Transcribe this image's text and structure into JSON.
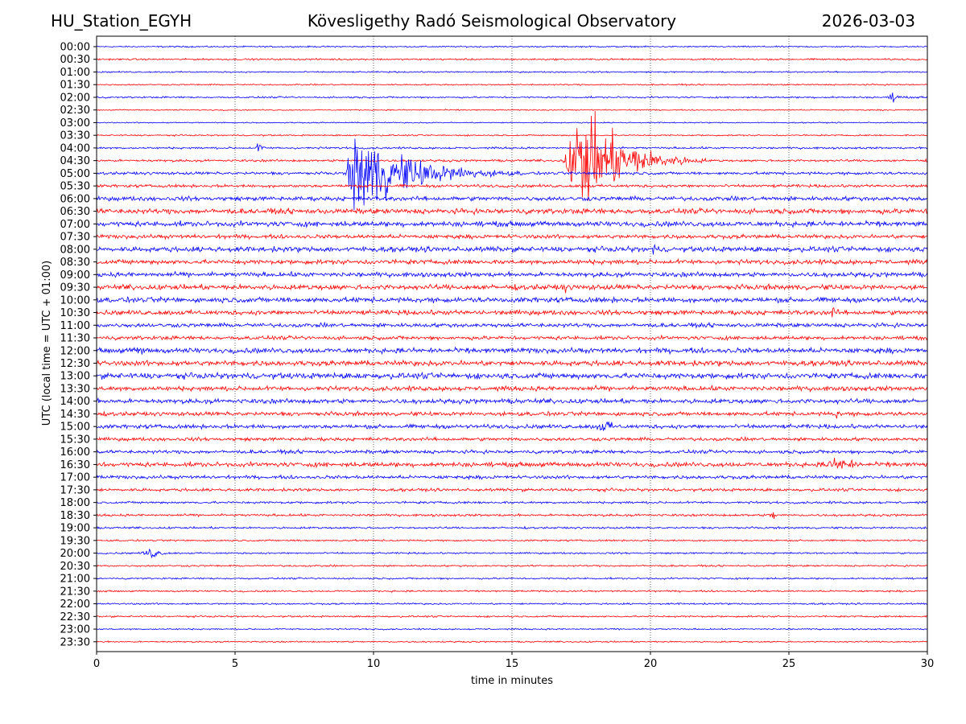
{
  "header": {
    "station": "HU_Station_EGYH",
    "observatory": "Kövesligethy Radó Seismological Observatory",
    "date": "2026-03-03"
  },
  "chart_data": {
    "type": "line",
    "title": "Kövesligethy Radó Seismological Observatory",
    "xlabel": "time in minutes",
    "ylabel": "UTC (local time = UTC + 01:00)",
    "xlim": [
      0,
      30
    ],
    "xticks": [
      0,
      5,
      10,
      15,
      20,
      25,
      30
    ],
    "grid": "vertical dotted lines at each x tick",
    "colors": {
      "even": "#0000ff",
      "odd": "#ff0000",
      "axis": "#000000"
    },
    "rows": [
      "00:00",
      "00:30",
      "01:00",
      "01:30",
      "02:00",
      "02:30",
      "03:00",
      "03:30",
      "04:00",
      "04:30",
      "05:00",
      "05:30",
      "06:00",
      "06:30",
      "07:00",
      "07:30",
      "08:00",
      "08:30",
      "09:00",
      "09:30",
      "10:00",
      "10:30",
      "11:00",
      "11:30",
      "12:00",
      "12:30",
      "13:00",
      "13:30",
      "14:00",
      "14:30",
      "15:00",
      "15:30",
      "16:00",
      "16:30",
      "17:00",
      "17:30",
      "18:00",
      "18:30",
      "19:00",
      "19:30",
      "20:00",
      "20:30",
      "21:00",
      "21:30",
      "22:00",
      "22:30",
      "23:00",
      "23:30"
    ],
    "noise_amplitude": [
      0.05,
      0.06,
      0.05,
      0.05,
      0.06,
      0.04,
      0.04,
      0.05,
      0.07,
      0.08,
      0.1,
      0.1,
      0.15,
      0.18,
      0.18,
      0.14,
      0.18,
      0.16,
      0.16,
      0.18,
      0.18,
      0.16,
      0.14,
      0.13,
      0.18,
      0.18,
      0.2,
      0.16,
      0.16,
      0.14,
      0.14,
      0.12,
      0.12,
      0.16,
      0.12,
      0.1,
      0.08,
      0.08,
      0.07,
      0.06,
      0.06,
      0.06,
      0.06,
      0.06,
      0.06,
      0.06,
      0.05,
      0.05
    ],
    "events": [
      {
        "row": "05:00",
        "onset_min": 9.0,
        "peak_min": 9.3,
        "end_min": 15.5,
        "peak_amplitude": 3.2
      },
      {
        "row": "04:30",
        "onset_min": 16.8,
        "peak_min": 17.6,
        "end_min": 22.0,
        "peak_amplitude": 3.8
      },
      {
        "row": "02:00",
        "onset_min": 28.5,
        "peak_min": 28.8,
        "end_min": 29.5,
        "peak_amplitude": 0.4
      },
      {
        "row": "16:30",
        "onset_min": 25.8,
        "peak_min": 27.0,
        "end_min": 28.5,
        "peak_amplitude": 0.6
      },
      {
        "row": "10:30",
        "onset_min": 26.2,
        "peak_min": 26.6,
        "end_min": 27.2,
        "peak_amplitude": 0.5
      },
      {
        "row": "18:30",
        "onset_min": 24.2,
        "peak_min": 24.5,
        "end_min": 24.8,
        "peak_amplitude": 0.5
      },
      {
        "row": "09:30",
        "onset_min": 16.7,
        "peak_min": 16.9,
        "end_min": 17.3,
        "peak_amplitude": 0.5
      },
      {
        "row": "15:00",
        "onset_min": 17.6,
        "peak_min": 18.5,
        "end_min": 19.0,
        "peak_amplitude": 0.5
      },
      {
        "row": "12:00",
        "onset_min": 1.2,
        "peak_min": 1.6,
        "end_min": 2.2,
        "peak_amplitude": 0.5
      },
      {
        "row": "20:00",
        "onset_min": 1.5,
        "peak_min": 2.0,
        "end_min": 3.2,
        "peak_amplitude": 0.4
      },
      {
        "row": "04:00",
        "onset_min": 5.7,
        "peak_min": 5.9,
        "end_min": 6.2,
        "peak_amplitude": 0.5
      },
      {
        "row": "08:00",
        "onset_min": 20.0,
        "peak_min": 20.1,
        "end_min": 20.5,
        "peak_amplitude": 0.6
      },
      {
        "row": "14:30",
        "onset_min": 26.5,
        "peak_min": 26.8,
        "end_min": 27.0,
        "peak_amplitude": 0.5
      }
    ]
  }
}
